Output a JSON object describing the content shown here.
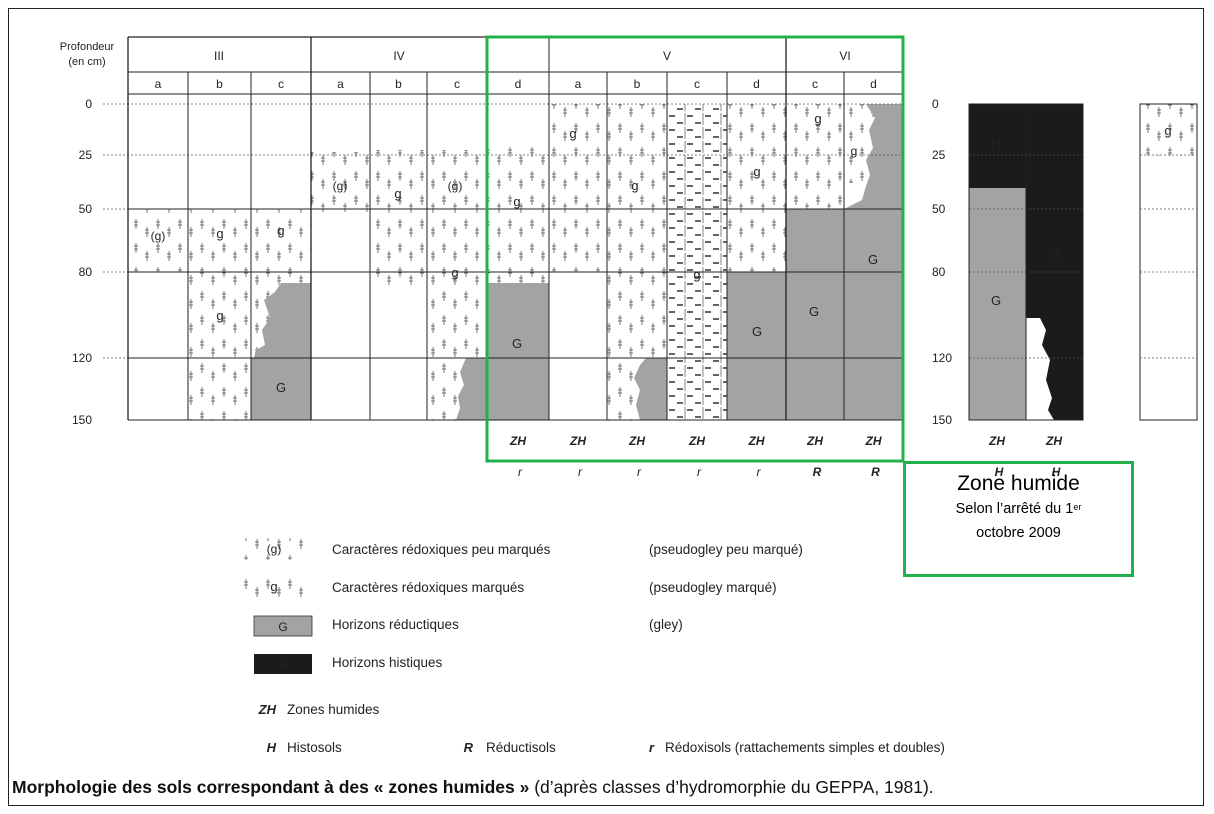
{
  "depth_header": {
    "line1": "Profondeur",
    "line2": "(en cm)"
  },
  "depth_ticks": [
    "0",
    "25",
    "50",
    "80",
    "120",
    "150"
  ],
  "classes": [
    "III",
    "IV",
    "V",
    "VI"
  ],
  "subclasses": [
    "a",
    "b",
    "c",
    "a",
    "b",
    "c",
    "d",
    "a",
    "b",
    "c",
    "d",
    "c",
    "d"
  ],
  "column_labels": {
    "zh": "ZH",
    "soil_types": [
      "r",
      "r",
      "r",
      "r",
      "r",
      "R",
      "R"
    ]
  },
  "histosol_ticks": [
    "0",
    "25",
    "50",
    "80",
    "120",
    "150"
  ],
  "histosol_labels": {
    "zh": "ZH",
    "h": "H"
  },
  "cell_letters": {
    "g": "g",
    "g_paren": "(g)",
    "G": "G",
    "H": "H"
  },
  "zone_humide": {
    "title": "Zone humide",
    "line1_prefix": "Selon l’arrêté du 1",
    "line1_sup": "er",
    "line2": "octobre 2009"
  },
  "legend": [
    {
      "symbol": "(g)",
      "label": "Caractères rédoxiques peu marqués",
      "note": "(pseudogley peu marqué)"
    },
    {
      "symbol": "g",
      "label": "Caractères rédoxiques marqués",
      "note": "(pseudogley marqué)"
    },
    {
      "symbol": "G",
      "label": "Horizons réductiques",
      "note": "(gley)"
    },
    {
      "symbol": "H",
      "label": "Horizons histiques",
      "note": ""
    }
  ],
  "abbreviations": {
    "zh": {
      "key": "ZH",
      "text": "Zones humides"
    },
    "h": {
      "key": "H",
      "text": "Histosols"
    },
    "R": {
      "key": "R",
      "text": "Réductisols"
    },
    "r": {
      "key": "r",
      "text": "Rédoxisols (rattachements simples et doubles)"
    }
  },
  "caption": {
    "bold": "Morphologie des sols correspondant à des « zones humides »",
    "rest": " (d’après classes d’hydromorphie du GEPPA, 1981)."
  },
  "colors": {
    "reductic": "#a3a3a3",
    "histic": "#1b1b1b",
    "highlight": "#22b04b",
    "grid": "#222222"
  }
}
